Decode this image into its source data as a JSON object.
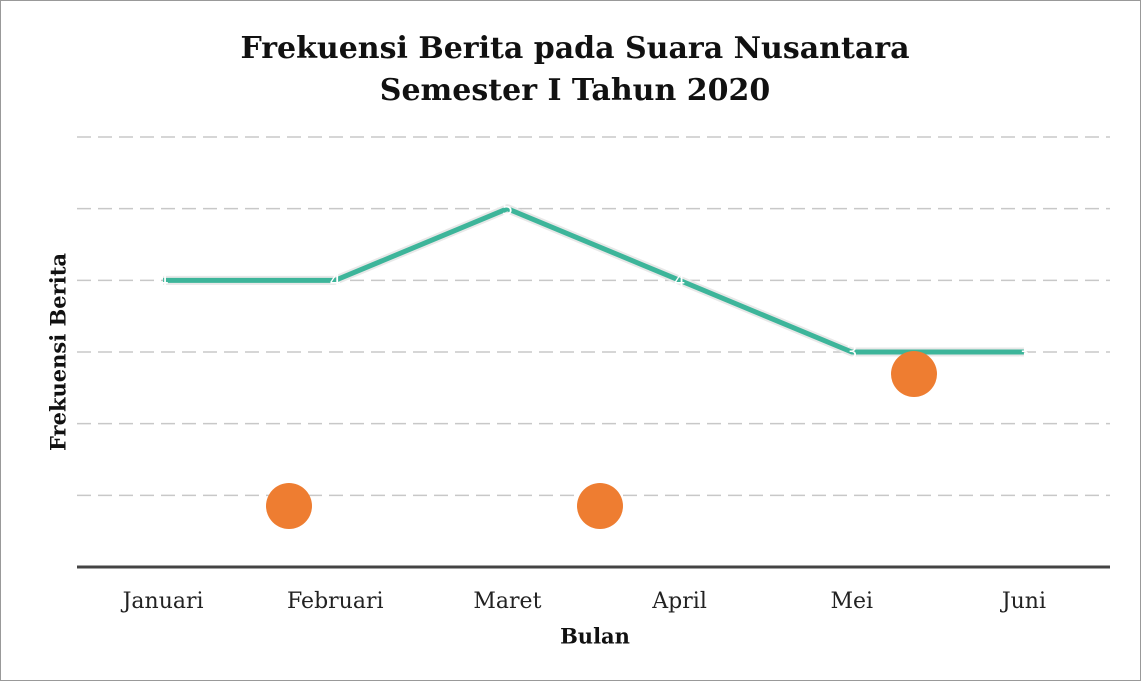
{
  "chart_data": {
    "type": "line",
    "title": [
      "Frekuensi Berita pada Suara Nusantara",
      "Semester I Tahun 2020"
    ],
    "x_label": "Bulan",
    "y_label": "Frekuensi Berita",
    "categories": [
      "Januari",
      "Februari",
      "Maret",
      "April",
      "Mei",
      "Juni"
    ],
    "series": [
      {
        "name": "Frekuensi Berita",
        "color": "#3db59a",
        "values": [
          4,
          4,
          5,
          4,
          3,
          3
        ]
      }
    ],
    "ylim": [
      0,
      6
    ],
    "yticks": [
      1,
      2,
      3,
      4,
      5,
      6
    ],
    "grid": true,
    "data_labels": true
  }
}
